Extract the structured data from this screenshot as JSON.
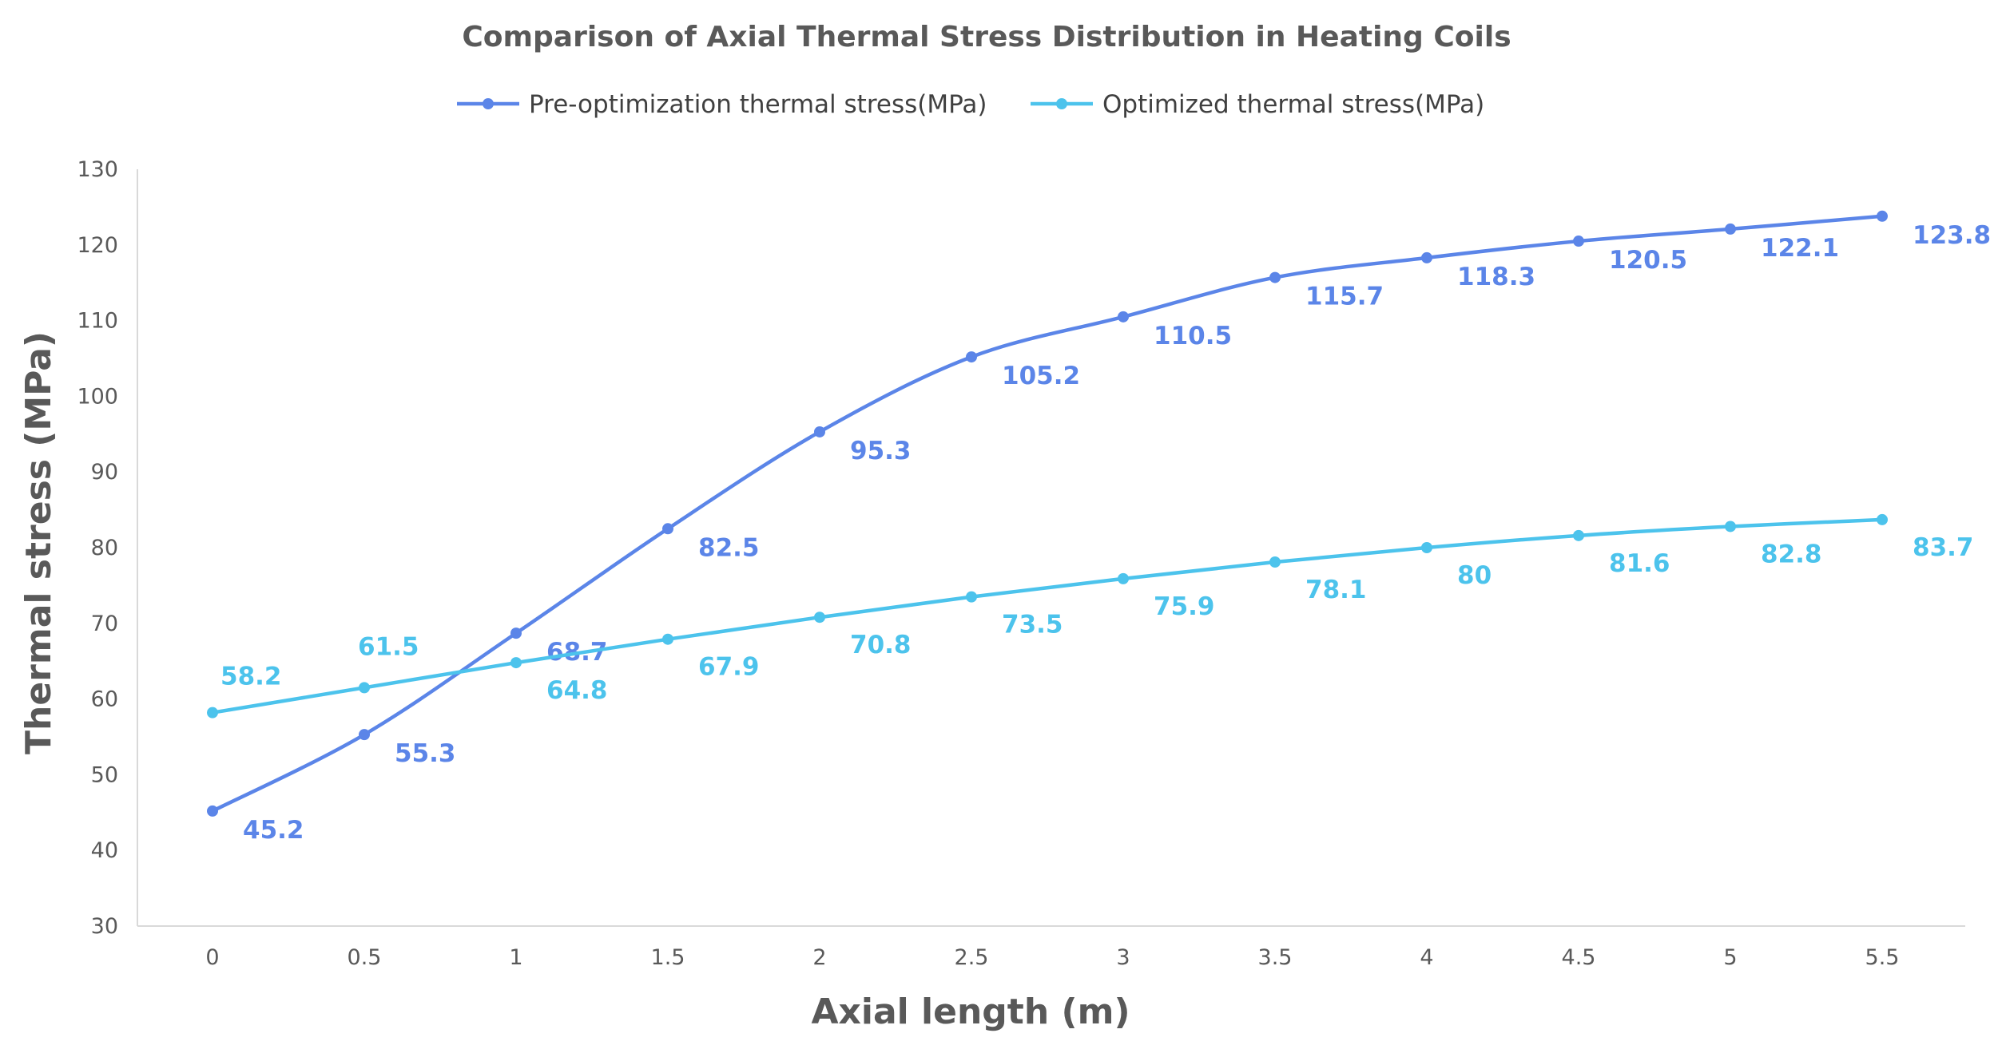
{
  "chart_data": {
    "type": "line",
    "title": "Comparison of Axial Thermal Stress Distribution in Heating Coils",
    "xlabel": "Axial length (m)",
    "ylabel": "Thermal stress (MPa)",
    "categories": [
      "0",
      "0.5",
      "1",
      "1.5",
      "2",
      "2.5",
      "3",
      "3.5",
      "4",
      "4.5",
      "5",
      "5.5"
    ],
    "x": [
      0,
      0.5,
      1,
      1.5,
      2,
      2.5,
      3,
      3.5,
      4,
      4.5,
      5,
      5.5
    ],
    "ylim": [
      30,
      130
    ],
    "yticks": [
      30,
      40,
      50,
      60,
      70,
      80,
      90,
      100,
      110,
      120,
      130
    ],
    "grid": false,
    "legend_position": "top-center",
    "smooth": true,
    "series": [
      {
        "name": "Pre-optimization thermal stress(MPa)",
        "color": "#5B85E8",
        "values": [
          45.2,
          55.3,
          68.7,
          82.5,
          95.3,
          105.2,
          110.5,
          115.7,
          118.3,
          120.5,
          122.1,
          123.8
        ],
        "labels": [
          "45.2",
          "55.3",
          "68.7",
          "82.5",
          "95.3",
          "105.2",
          "110.5",
          "115.7",
          "118.3",
          "120.5",
          "122.1",
          "123.8"
        ]
      },
      {
        "name": "Optimized thermal stress(MPa)",
        "color": "#4CC3EC",
        "values": [
          58.2,
          61.5,
          64.8,
          67.9,
          70.8,
          73.5,
          75.9,
          78.1,
          80,
          81.6,
          82.8,
          83.7
        ],
        "labels": [
          "58.2",
          "61.5",
          "64.8",
          "67.9",
          "70.8",
          "73.5",
          "75.9",
          "78.1",
          "80",
          "81.6",
          "82.8",
          "83.7"
        ]
      }
    ]
  }
}
